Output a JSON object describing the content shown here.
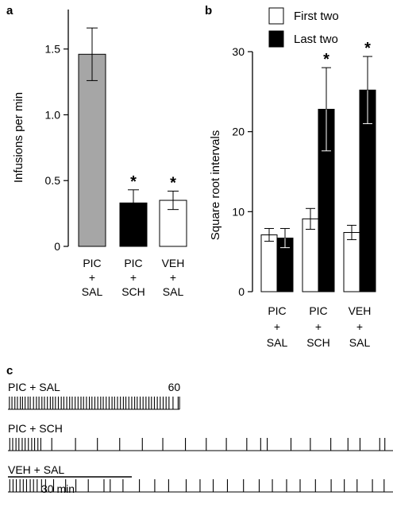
{
  "chart_data": [
    {
      "panel": "a",
      "type": "bar",
      "ylabel": "Infusions per min",
      "ylim": [
        0,
        1.8
      ],
      "yticks": [
        "0",
        "0.5",
        "1.0",
        "1.5"
      ],
      "categories": [
        [
          "PIC",
          "+",
          "SAL"
        ],
        [
          "PIC",
          "+",
          "SCH"
        ],
        [
          "VEH",
          "+",
          "SAL"
        ]
      ],
      "values": [
        1.46,
        0.33,
        0.35
      ],
      "errors": [
        0.2,
        0.1,
        0.07
      ],
      "colors": [
        "#a6a6a6",
        "#000000",
        "#ffffff"
      ],
      "significance": [
        "",
        "*",
        "*"
      ]
    },
    {
      "panel": "b",
      "type": "bar",
      "ylabel": "Square root intervals",
      "ylim": [
        0,
        30
      ],
      "yticks": [
        "0",
        "10",
        "20",
        "30"
      ],
      "categories": [
        [
          "PIC",
          "+",
          "SAL"
        ],
        [
          "PIC",
          "+",
          "SCH"
        ],
        [
          "VEH",
          "+",
          "SAL"
        ]
      ],
      "series": [
        {
          "name": "First two",
          "color": "#ffffff",
          "values": [
            7.1,
            9.1,
            7.4
          ],
          "errors": [
            0.8,
            1.3,
            0.9
          ],
          "significance": [
            "",
            "",
            ""
          ]
        },
        {
          "name": "Last two",
          "color": "#000000",
          "values": [
            6.7,
            22.8,
            25.2
          ],
          "errors": [
            1.2,
            5.2,
            4.2
          ],
          "significance": [
            "",
            "*",
            "*"
          ]
        }
      ],
      "legend": "top"
    },
    {
      "panel": "c",
      "type": "raster",
      "scale_bar_label": "30 min",
      "rows": [
        {
          "label": "PIC + SAL",
          "count": "60",
          "duration_min": 47,
          "times": [
            0.4,
            1.1,
            1.9,
            2.6,
            3.4,
            4.0,
            4.7,
            5.5,
            6.1,
            7.0,
            7.8,
            8.5,
            9.3,
            10.0,
            10.8,
            11.6,
            12.3,
            13.0,
            13.8,
            14.6,
            15.3,
            16.1,
            16.9,
            17.6,
            18.4,
            19.2,
            20.0,
            20.7,
            21.5,
            22.3,
            23.0,
            23.8,
            24.6,
            25.4,
            26.1,
            26.9,
            27.7,
            28.5,
            29.2,
            30.0,
            30.8,
            31.6,
            32.3,
            33.1,
            33.9,
            34.7,
            35.4,
            36.2,
            37.0,
            37.8,
            38.6,
            39.3,
            40.1,
            40.9,
            41.7,
            42.5,
            43.3,
            44.1,
            45.2,
            46.6
          ]
        },
        {
          "label": "PIC + SCH",
          "count": "39",
          "duration_min": 126,
          "times": [
            0.5,
            1.3,
            2.2,
            3.0,
            3.9,
            4.7,
            5.6,
            6.5,
            7.3,
            8.2,
            9.0,
            12.0,
            18.5,
            24.5,
            30.6,
            36.8,
            42.4,
            48.6,
            54.3,
            59.8,
            65.4,
            69.2,
            71.0,
            77.5,
            82.8,
            88.4,
            93.1,
            96.4,
            101.8,
            103.2,
            107.6,
            109.5,
            111.0,
            114.4,
            117.3,
            119.0,
            121.5,
            123.6,
            125.5
          ]
        },
        {
          "label": "VEH + SAL",
          "count": "43",
          "duration_min": 126,
          "times": [
            0.5,
            1.4,
            2.3,
            3.3,
            4.2,
            5.1,
            6.1,
            7.0,
            8.0,
            9.2,
            10.3,
            12.5,
            15.8,
            18.6,
            22.0,
            26.3,
            28.0,
            31.5,
            36.0,
            40.2,
            44.0,
            48.8,
            52.6,
            56.2,
            60.1,
            64.5,
            68.8,
            72.4,
            76.3,
            80.0,
            84.2,
            88.5,
            92.1,
            95.6,
            99.8,
            103.0,
            106.5,
            110.7,
            114.3,
            117.0,
            120.1,
            123.2,
            125.5
          ]
        }
      ]
    }
  ],
  "panels": {
    "a": "a",
    "b": "b",
    "c": "c"
  }
}
